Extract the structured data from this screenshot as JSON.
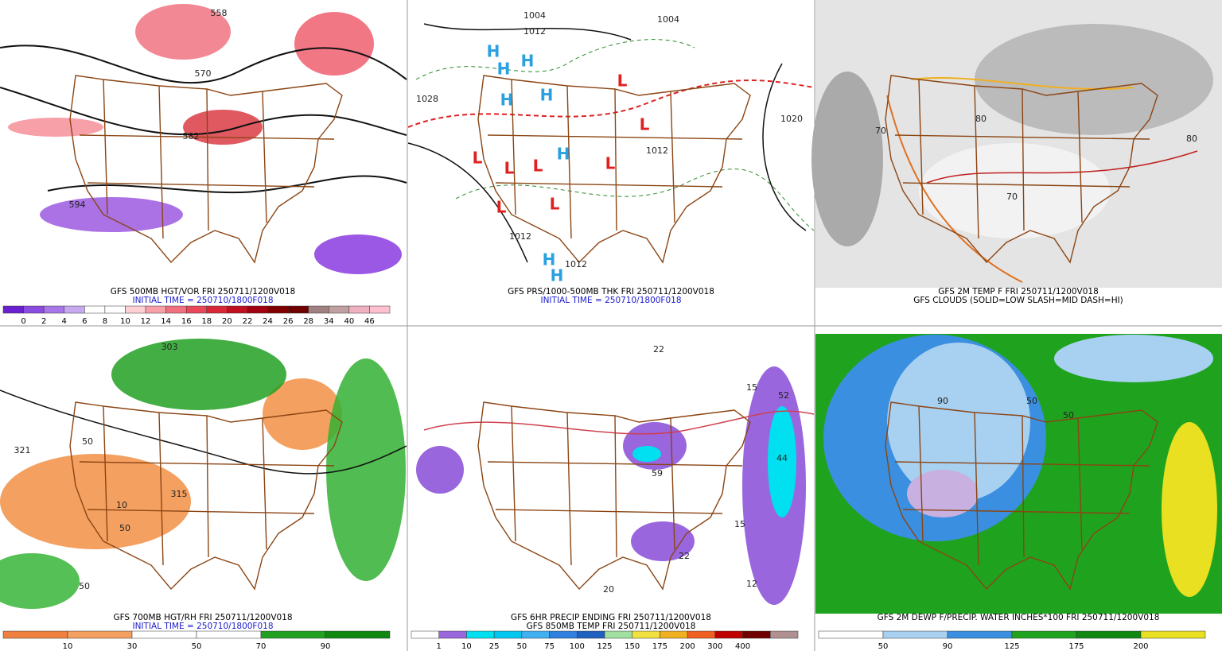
{
  "panels": [
    {
      "caption": [
        "GFS 500MB HGT/VOR FRI 250711/1200V018",
        "INITIAL TIME = 250710/1800F018"
      ],
      "caption_colors": [
        "#000000",
        "#1a1acc"
      ],
      "colorbar": {
        "colors": [
          "#6a1fd0",
          "#8a4be0",
          "#a878e8",
          "#c8a8f0",
          "#ffffff",
          "#ffffff",
          "#fcd0d5",
          "#f7a0a8",
          "#f07080",
          "#e84858",
          "#d82838",
          "#c01020",
          "#a00010",
          "#800000",
          "#700000",
          "#a08080",
          "#c0a0a0",
          "#f0b0c0",
          "#ffc0d0"
        ],
        "labels": [
          0,
          2,
          4,
          6,
          8,
          10,
          12,
          14,
          16,
          18,
          20,
          22,
          24,
          26,
          28,
          34,
          40,
          46
        ]
      },
      "map_labels": [
        "558",
        "570",
        "582",
        "594"
      ]
    },
    {
      "caption": [
        "GFS PRS/1000-500MB THK FRI 250711/1200V018",
        "INITIAL TIME = 250710/1800F018"
      ],
      "caption_colors": [
        "#000000",
        "#1a1acc"
      ],
      "map_labels": [
        "1004",
        "1012",
        "1004",
        "1028",
        "1020",
        "1012",
        "1012",
        "1012",
        "H",
        "H",
        "H",
        "H",
        "H",
        "H",
        "H",
        "H",
        "L",
        "L",
        "L",
        "L",
        "L",
        "L",
        "L",
        "L"
      ]
    },
    {
      "caption": [
        "GFS 2M TEMP F FRI 250711/1200V018",
        "GFS CLOUDS (SOLID=LOW SLASH=MID DASH=HI)"
      ],
      "caption_colors": [
        "#000000",
        "#000000"
      ],
      "map_labels": [
        "80",
        "70",
        "70",
        "80"
      ]
    },
    {
      "caption": [
        "GFS 700MB HGT/RH FRI 250711/1200V018",
        "INITIAL TIME = 250710/1800F018"
      ],
      "caption_colors": [
        "#000000",
        "#1a1acc"
      ],
      "colorbar": {
        "colors": [
          "#f08040",
          "#f4a060",
          "#ffffff",
          "#ffffff",
          "#22a022",
          "#118811"
        ],
        "labels": [
          10,
          30,
          50,
          70,
          90
        ]
      },
      "map_labels": [
        "303",
        "321",
        "50",
        "315",
        "50",
        "50",
        "10"
      ]
    },
    {
      "caption": [
        "GFS 6HR PRECIP ENDING FRI 250711/1200V018",
        "GFS 850MB TEMP FRI 250711/1200V018"
      ],
      "caption_colors": [
        "#000000",
        "#000000"
      ],
      "colorbar": {
        "colors": [
          "#ffffff",
          "#9966dd",
          "#00e0f0",
          "#00c8f0",
          "#40b0f0",
          "#3080e0",
          "#2060c0",
          "#a0e0a0",
          "#f0e040",
          "#f0b020",
          "#f06020",
          "#c00000",
          "#700000",
          "#b09090"
        ],
        "labels": [
          1,
          10,
          25,
          50,
          75,
          100,
          125,
          150,
          175,
          200,
          300,
          400
        ]
      },
      "map_labels": [
        "22",
        "15",
        "52",
        "44",
        "59",
        "15",
        "22",
        "12",
        "20"
      ]
    },
    {
      "caption": [
        "GFS 2M DEWP F/PRECIP. WATER INCHES*100 FRI 250711/1200V018"
      ],
      "caption_colors": [
        "#000000"
      ],
      "colorbar": {
        "colors": [
          "#ffffff",
          "#a8d0f0",
          "#3a8fe0",
          "#1fa31f",
          "#118811",
          "#e8e020"
        ],
        "labels": [
          50,
          90,
          125,
          175,
          200
        ]
      },
      "map_labels": [
        "90",
        "50",
        "50"
      ]
    }
  ]
}
